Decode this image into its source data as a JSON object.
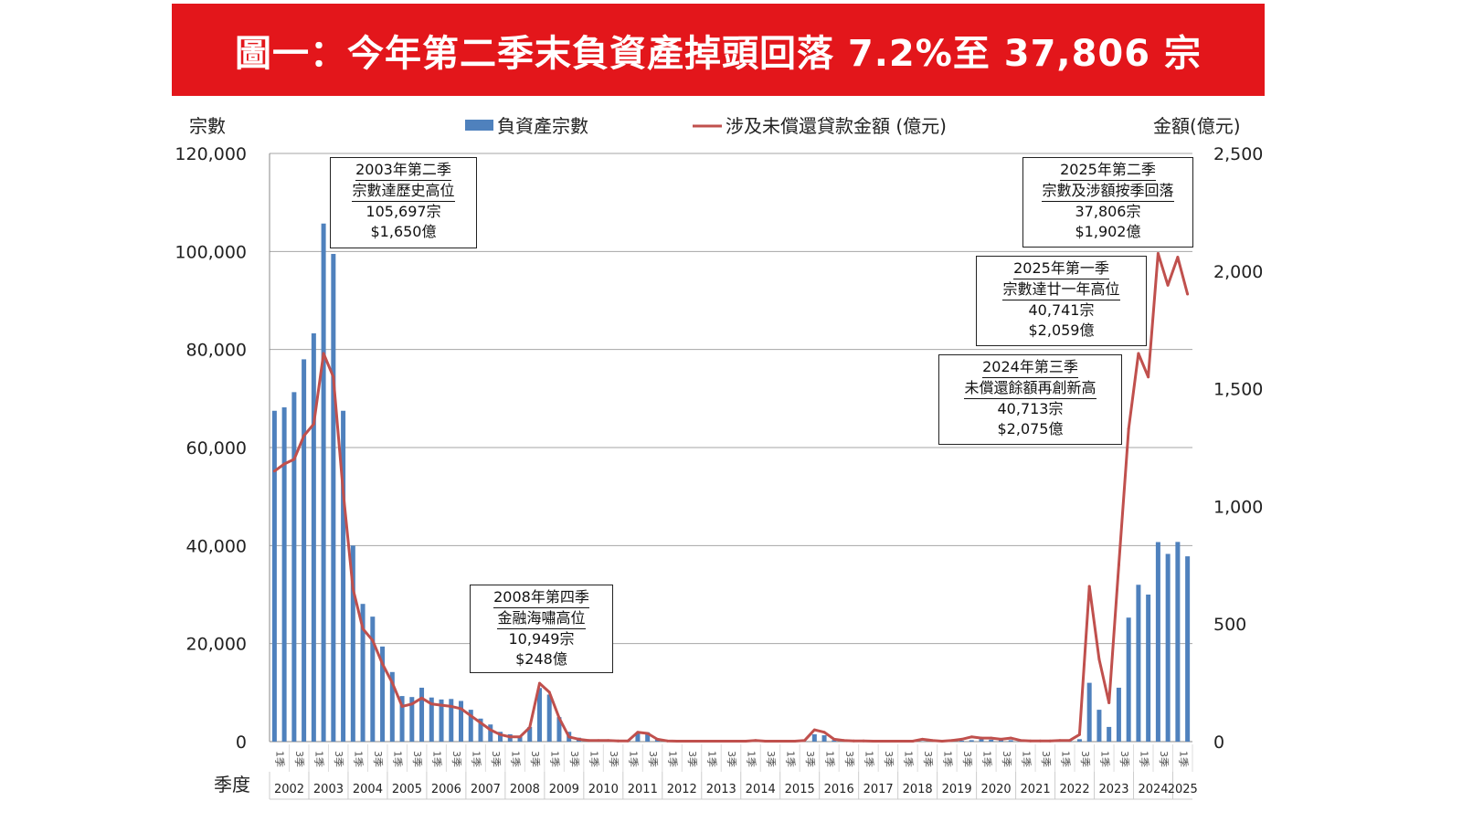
{
  "title": "圖一：今年第二季末負資產掉頭回落 7.2%至 37,806 宗",
  "colors": {
    "title_bg": "#e3161b",
    "bars": "#4f81bd",
    "line": "#c0504d"
  },
  "chart_data": {
    "type": "bar+line",
    "title": "圖一：今年第二季末負資產掉頭回落 7.2%至 37,806 宗",
    "ylabel_left": "宗數",
    "ylabel_right": "金額(億元)",
    "xlabel": "季度",
    "ylim_left": [
      0,
      120000
    ],
    "ylim_right": [
      0,
      2500
    ],
    "yticks_left": [
      "0",
      "20,000",
      "40,000",
      "60,000",
      "80,000",
      "100,000",
      "120,000"
    ],
    "yticks_right": [
      "0",
      "500",
      "1,000",
      "1,500",
      "2,000",
      "2,500"
    ],
    "grid": true,
    "legend_placement": "top",
    "quarter_labels": [
      "1季",
      "3季"
    ],
    "years": [
      "2002",
      "2003",
      "2004",
      "2005",
      "2006",
      "2007",
      "2008",
      "2009",
      "2010",
      "2011",
      "2012",
      "2013",
      "2014",
      "2015",
      "2016",
      "2017",
      "2018",
      "2019",
      "2020",
      "2021",
      "2022",
      "2023",
      "2024",
      "2025"
    ],
    "series": [
      {
        "name": "負資產宗數",
        "type": "bar",
        "axis": "left",
        "values": [
          67500,
          68200,
          71300,
          78000,
          83300,
          105697,
          99500,
          67500,
          40000,
          28100,
          25500,
          19400,
          14200,
          9300,
          9100,
          11000,
          9000,
          8600,
          8700,
          8300,
          6500,
          4700,
          3500,
          2000,
          1500,
          1100,
          3000,
          10949,
          9600,
          5000,
          2000,
          800,
          300,
          200,
          150,
          150,
          200,
          1800,
          1900,
          500,
          100,
          50,
          30,
          20,
          20,
          20,
          20,
          20,
          20,
          30,
          20,
          20,
          20,
          20,
          50,
          1500,
          1300,
          300,
          100,
          50,
          30,
          20,
          20,
          20,
          20,
          20,
          50,
          50,
          50,
          100,
          200,
          300,
          500,
          400,
          300,
          300,
          100,
          50,
          50,
          50,
          100,
          100,
          500,
          12000,
          6500,
          3000,
          11000,
          25300,
          32000,
          30000,
          40713,
          38300,
          40741,
          37806
        ]
      },
      {
        "name": "涉及未償還貸款金額 (億元)",
        "type": "line",
        "axis": "right",
        "values": [
          1150,
          1180,
          1200,
          1300,
          1350,
          1650,
          1550,
          1060,
          650,
          480,
          430,
          330,
          250,
          150,
          160,
          185,
          160,
          155,
          150,
          140,
          110,
          80,
          50,
          30,
          20,
          20,
          60,
          248,
          210,
          100,
          20,
          10,
          5,
          5,
          5,
          3,
          3,
          40,
          35,
          10,
          3,
          2,
          2,
          2,
          2,
          2,
          2,
          2,
          2,
          5,
          2,
          2,
          2,
          2,
          5,
          50,
          40,
          10,
          5,
          3,
          3,
          2,
          2,
          2,
          2,
          2,
          10,
          5,
          2,
          5,
          10,
          20,
          15,
          15,
          10,
          15,
          5,
          3,
          3,
          3,
          5,
          5,
          30,
          660,
          350,
          165,
          750,
          1330,
          1650,
          1550,
          2075,
          1940,
          2059,
          1902
        ]
      }
    ],
    "annotations": [
      {
        "lines": [
          "2003年第二季",
          "宗數達歷史高位",
          "105,697宗",
          "$1,650億"
        ]
      },
      {
        "lines": [
          "2008年第四季",
          "金融海嘯高位",
          "10,949宗",
          "$248億"
        ]
      },
      {
        "lines": [
          "2025年第二季",
          "宗數及涉額按季回落",
          "37,806宗",
          "$1,902億"
        ]
      },
      {
        "lines": [
          "2025年第一季",
          "宗數達廿一年高位",
          "40,741宗",
          "$2,059億"
        ]
      },
      {
        "lines": [
          "2024年第三季",
          "未償還餘額再創新高",
          "40,713宗",
          "$2,075億"
        ]
      }
    ]
  }
}
